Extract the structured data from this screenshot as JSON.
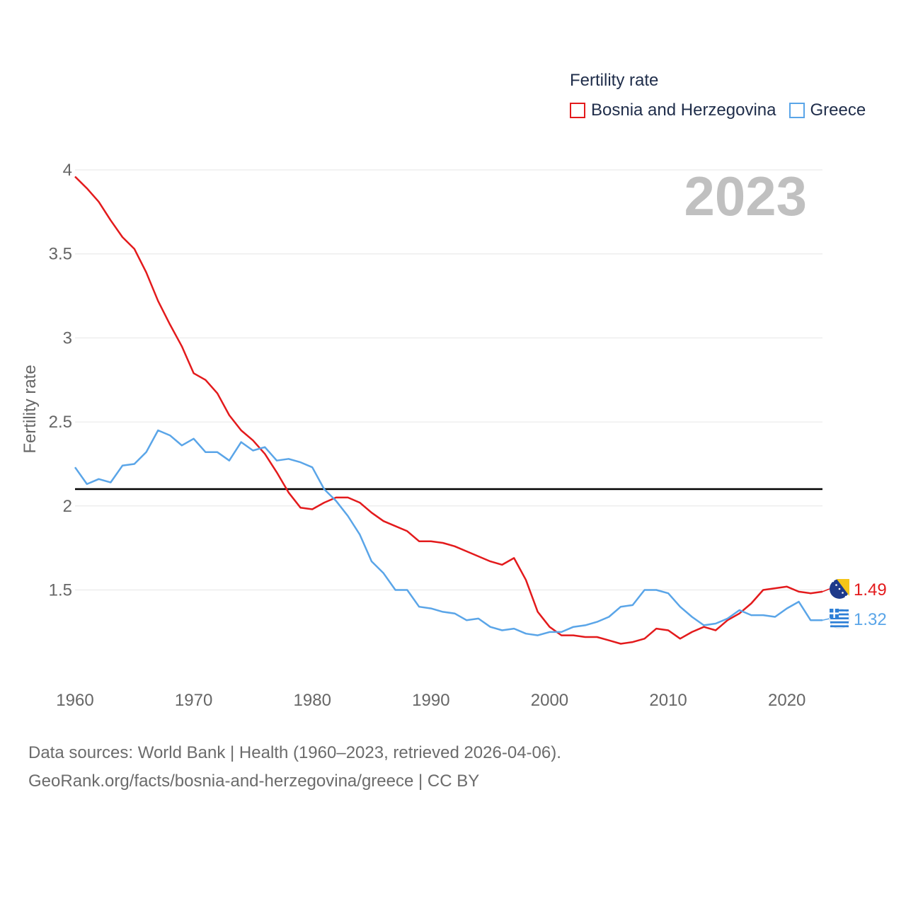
{
  "chart_data": {
    "type": "line",
    "title": "Fertility rate",
    "ylabel": "Fertility rate",
    "xlabel": "",
    "year_label": "2023",
    "xlim": [
      1960,
      2023
    ],
    "ylim": [
      1.0,
      4.0
    ],
    "y_ticks": [
      1.5,
      2,
      2.5,
      3,
      3.5,
      4
    ],
    "y_tick_labels": [
      "1.5",
      "2",
      "2.5",
      "3",
      "3.5",
      "4"
    ],
    "x_ticks": [
      1960,
      1970,
      1980,
      1990,
      2000,
      2010,
      2020
    ],
    "x_tick_labels": [
      "1960",
      "1970",
      "1980",
      "1990",
      "2000",
      "2010",
      "2020"
    ],
    "reference_line": {
      "value": 2.1,
      "color": "#000000"
    },
    "legend_position": "top-right",
    "grid": true,
    "x": [
      1960,
      1961,
      1962,
      1963,
      1964,
      1965,
      1966,
      1967,
      1968,
      1969,
      1970,
      1971,
      1972,
      1973,
      1974,
      1975,
      1976,
      1977,
      1978,
      1979,
      1980,
      1981,
      1982,
      1983,
      1984,
      1985,
      1986,
      1987,
      1988,
      1989,
      1990,
      1991,
      1992,
      1993,
      1994,
      1995,
      1996,
      1997,
      1998,
      1999,
      2000,
      2001,
      2002,
      2003,
      2004,
      2005,
      2006,
      2007,
      2008,
      2009,
      2010,
      2011,
      2012,
      2013,
      2014,
      2015,
      2016,
      2017,
      2018,
      2019,
      2020,
      2021,
      2022,
      2023
    ],
    "series": [
      {
        "name": "Bosnia and Herzegovina",
        "color": "#e31a1c",
        "end_label": "1.49",
        "flag_icon": "bosnia-flag-icon",
        "values": [
          3.96,
          3.89,
          3.81,
          3.7,
          3.6,
          3.53,
          3.39,
          3.22,
          3.08,
          2.95,
          2.79,
          2.75,
          2.67,
          2.54,
          2.45,
          2.39,
          2.31,
          2.2,
          2.08,
          1.99,
          1.98,
          2.02,
          2.05,
          2.05,
          2.02,
          1.96,
          1.91,
          1.88,
          1.85,
          1.79,
          1.79,
          1.78,
          1.76,
          1.73,
          1.7,
          1.67,
          1.65,
          1.69,
          1.56,
          1.37,
          1.28,
          1.23,
          1.23,
          1.22,
          1.22,
          1.2,
          1.18,
          1.19,
          1.21,
          1.27,
          1.26,
          1.21,
          1.25,
          1.28,
          1.26,
          1.32,
          1.36,
          1.42,
          1.5,
          1.51,
          1.52,
          1.49,
          1.48,
          1.49
        ]
      },
      {
        "name": "Greece",
        "color": "#5aa5e8",
        "end_label": "1.32",
        "flag_icon": "greece-flag-icon",
        "values": [
          2.23,
          2.13,
          2.16,
          2.14,
          2.24,
          2.25,
          2.32,
          2.45,
          2.42,
          2.36,
          2.4,
          2.32,
          2.32,
          2.27,
          2.38,
          2.33,
          2.35,
          2.27,
          2.28,
          2.26,
          2.23,
          2.1,
          2.03,
          1.94,
          1.83,
          1.67,
          1.6,
          1.5,
          1.5,
          1.4,
          1.39,
          1.37,
          1.36,
          1.32,
          1.33,
          1.28,
          1.26,
          1.27,
          1.24,
          1.23,
          1.25,
          1.25,
          1.28,
          1.29,
          1.31,
          1.34,
          1.4,
          1.41,
          1.5,
          1.5,
          1.48,
          1.4,
          1.34,
          1.29,
          1.3,
          1.33,
          1.38,
          1.35,
          1.35,
          1.34,
          1.39,
          1.43,
          1.32,
          1.32
        ]
      }
    ]
  },
  "source_line1": "Data sources: World Bank | Health (1960–2023, retrieved 2026-04-06).",
  "source_line2": "GeoRank.org/facts/bosnia-and-herzegovina/greece | CC BY"
}
